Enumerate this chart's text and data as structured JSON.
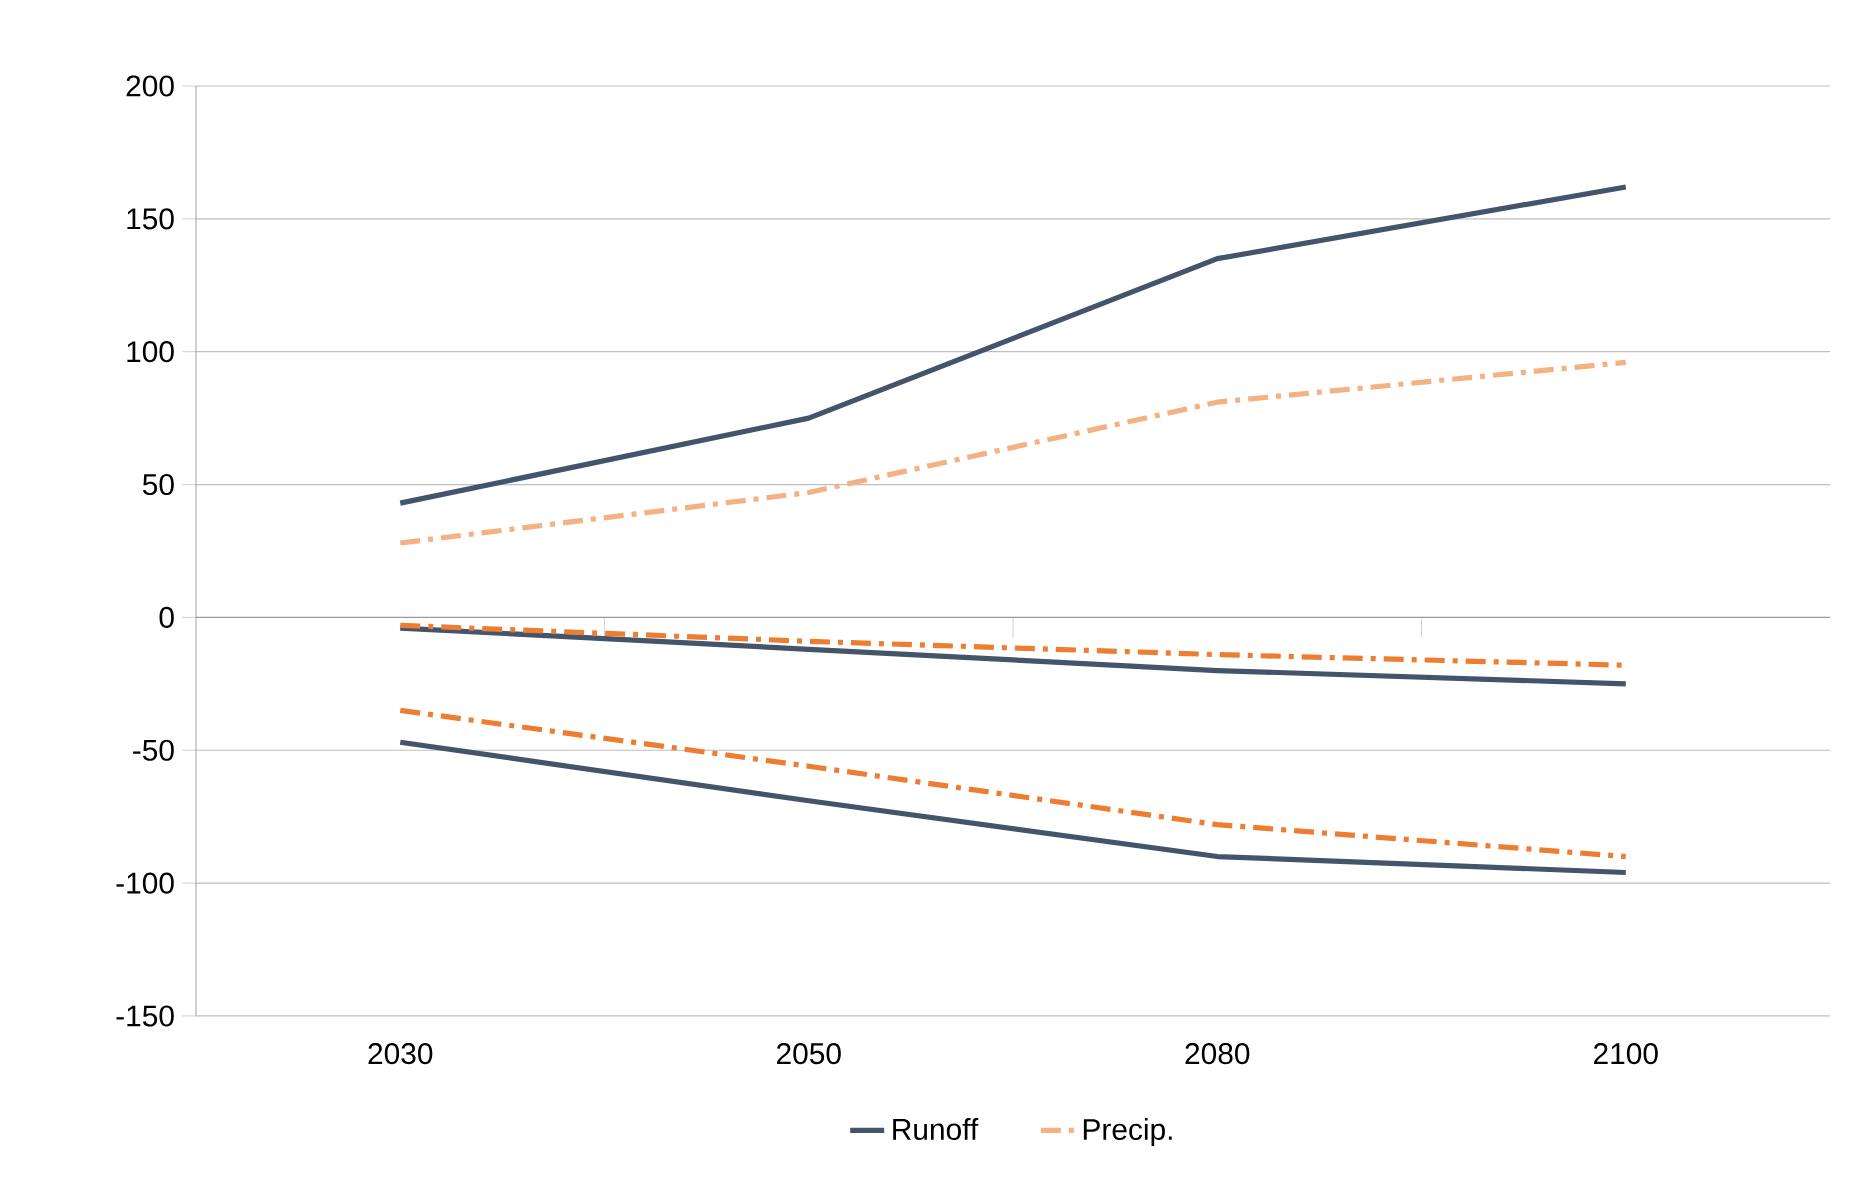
{
  "chart_data": {
    "type": "line",
    "categories": [
      "2030",
      "2050",
      "2080",
      "2100"
    ],
    "series": [
      {
        "name": "Runoff",
        "color": "#44546a",
        "line_style": "solid",
        "values": [
          43,
          75,
          135,
          162
        ]
      },
      {
        "name": "Precip.",
        "color": "#f4b183",
        "line_style": "dashdot",
        "values": [
          28,
          47,
          81,
          96
        ]
      },
      {
        "color": "#44546a",
        "line_style": "solid",
        "values": [
          -4,
          -12,
          -20,
          -25
        ]
      },
      {
        "color": "#ed7d31",
        "line_style": "dashdot",
        "values": [
          -3,
          -9,
          -14,
          -18
        ]
      },
      {
        "color": "#44546a",
        "line_style": "solid",
        "values": [
          -47,
          -69,
          -90,
          -96
        ]
      },
      {
        "color": "#ed7d31",
        "line_style": "dashdot",
        "values": [
          -35,
          -56,
          -78,
          -90
        ]
      }
    ],
    "ylim": [
      -150,
      200
    ],
    "yticks": [
      -150,
      -100,
      -50,
      0,
      50,
      100,
      150,
      200
    ],
    "grid": "y",
    "legend": "bottom",
    "marker": "none"
  }
}
